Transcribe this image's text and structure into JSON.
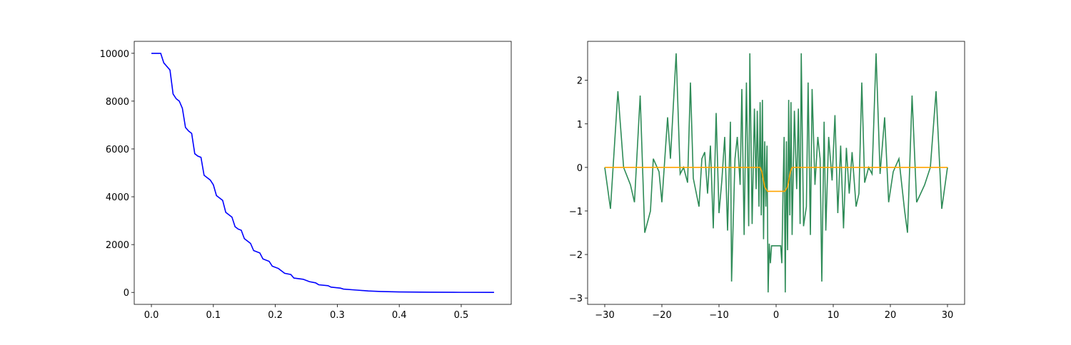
{
  "chart_data": [
    {
      "type": "line",
      "xlim": [
        -0.0277,
        0.5807
      ],
      "ylim": [
        -500,
        10500
      ],
      "xticks": [
        {
          "value": 0,
          "label": "0.0"
        },
        0.1,
        0.2,
        0.3,
        0.4,
        0.5
      ],
      "yticks": [
        0,
        2000,
        4000,
        6000,
        8000,
        10000
      ],
      "series": [
        {
          "color": "#0000ff",
          "x": [
            0,
            0.015,
            0.02,
            0.03,
            0.035,
            0.04,
            0.045,
            0.05,
            0.055,
            0.06,
            0.065,
            0.07,
            0.075,
            0.08,
            0.085,
            0.09,
            0.095,
            0.1,
            0.105,
            0.11,
            0.115,
            0.12,
            0.125,
            0.13,
            0.135,
            0.14,
            0.145,
            0.15,
            0.155,
            0.16,
            0.165,
            0.175,
            0.18,
            0.19,
            0.195,
            0.205,
            0.215,
            0.225,
            0.23,
            0.245,
            0.255,
            0.265,
            0.27,
            0.285,
            0.29,
            0.305,
            0.31,
            0.33,
            0.35,
            0.37,
            0.4,
            0.45,
            0.5,
            0.553
          ],
          "values": [
            10000,
            10000,
            9600,
            9300,
            8300,
            8100,
            8000,
            7700,
            6900,
            6750,
            6650,
            5800,
            5700,
            5650,
            4900,
            4800,
            4700,
            4500,
            4050,
            3950,
            3850,
            3350,
            3250,
            3150,
            2750,
            2650,
            2600,
            2250,
            2150,
            2050,
            1750,
            1650,
            1400,
            1300,
            1100,
            1000,
            800,
            750,
            600,
            550,
            450,
            400,
            320,
            280,
            220,
            180,
            140,
            100,
            60,
            40,
            20,
            8,
            3,
            0
          ]
        }
      ]
    },
    {
      "type": "line",
      "xlim": [
        -33,
        33
      ],
      "ylim": [
        -3.145,
        2.895
      ],
      "xticks": [
        {
          "value": -30,
          "label": "−30"
        },
        {
          "value": -20,
          "label": "−20"
        },
        {
          "value": -10,
          "label": "−10"
        },
        0,
        10,
        20,
        30
      ],
      "yticks": [
        {
          "value": -3,
          "label": "−3"
        },
        {
          "value": -2,
          "label": "−2"
        },
        {
          "value": -1,
          "label": "−1"
        },
        0,
        1,
        2
      ],
      "series": [
        {
          "color": "#2e8b57",
          "x": [
            -30,
            -29,
            -27.7,
            -26.7,
            -25.5,
            -24.8,
            -23.8,
            -23,
            -22,
            -21.5,
            -20.5,
            -20,
            -19,
            -18.5,
            -17.5,
            -16.8,
            -16.2,
            -15.5,
            -15,
            -14.5,
            -13.5,
            -13,
            -12.5,
            -12,
            -11.5,
            -11,
            -10.5,
            -10,
            -9.5,
            -9,
            -8.5,
            -8,
            -7.8,
            -7.2,
            -6.8,
            -6.3,
            -6,
            -5.6,
            -5.2,
            -4.8,
            -4.6,
            -4.2,
            -3.8,
            -3.5,
            -3.3,
            -3,
            -2.8,
            -2.6,
            -2.4,
            -2.2,
            -2,
            -1.8,
            -1.6,
            -1.4,
            -1.2,
            -1,
            -0.8,
            0.8,
            1,
            1.2,
            1.4,
            1.6,
            1.8,
            2,
            2.2,
            2.4,
            2.6,
            2.8,
            3.2,
            3.6,
            3.9,
            4.2,
            4.4,
            4.8,
            5.3,
            5.6,
            6,
            6.3,
            6.8,
            7.3,
            7.7,
            8,
            8.4,
            8.7,
            9.2,
            9.8,
            10.3,
            10.8,
            11.3,
            11.8,
            12.3,
            12.8,
            13.3,
            14,
            14.5,
            15,
            15.5,
            16.2,
            16.8,
            17.5,
            18.2,
            19,
            19.7,
            20.5,
            21.5,
            22.5,
            23,
            23.8,
            24.6,
            26,
            27,
            28,
            29,
            30
          ],
          "values": [
            0,
            -0.95,
            1.75,
            0,
            -0.4,
            -0.8,
            1.65,
            -1.5,
            -1.0,
            0.2,
            -0.1,
            -0.8,
            1.15,
            0.2,
            2.62,
            -0.15,
            0,
            -0.35,
            1.95,
            -0.25,
            -0.9,
            0.2,
            0.35,
            -0.6,
            0.5,
            -1.4,
            1.25,
            -1.05,
            -0.3,
            0.7,
            -1.45,
            1.05,
            -2.62,
            0.2,
            0.7,
            -0.4,
            1.8,
            -1.55,
            1.95,
            -1.35,
            2.62,
            -1.3,
            1.35,
            -0.5,
            1.3,
            -0.9,
            1.5,
            -1.1,
            1.55,
            -1.65,
            0.6,
            -0.9,
            0.5,
            -2.87,
            -1.75,
            -2.2,
            -1.8,
            -1.8,
            -2.2,
            -0.6,
            0.7,
            -2.87,
            0.6,
            -1.9,
            1.55,
            -1.1,
            1.5,
            -1.55,
            1.3,
            -0.5,
            1.35,
            -1.3,
            2.62,
            -1.35,
            -0.9,
            1.95,
            -1.55,
            1.8,
            -0.4,
            0.7,
            0.2,
            -2.62,
            1.05,
            -1.45,
            0.7,
            -0.3,
            1.2,
            -1.05,
            0.5,
            -1.4,
            0.45,
            -0.6,
            0.35,
            -0.9,
            -0.6,
            1.95,
            -0.35,
            0,
            -0.15,
            2.62,
            -0.15,
            1.15,
            -0.8,
            -0.1,
            0.2,
            -1.0,
            -1.5,
            1.65,
            -0.8,
            -0.4,
            0,
            1.75,
            -0.95,
            0
          ]
        },
        {
          "color": "#ffa500",
          "x": [
            -30,
            -2.8,
            -2.5,
            -2,
            -1.5,
            1.5,
            2,
            2.5,
            2.8,
            30
          ],
          "values": [
            0,
            0,
            -0.1,
            -0.45,
            -0.55,
            -0.55,
            -0.45,
            -0.1,
            0,
            0
          ]
        }
      ]
    }
  ]
}
